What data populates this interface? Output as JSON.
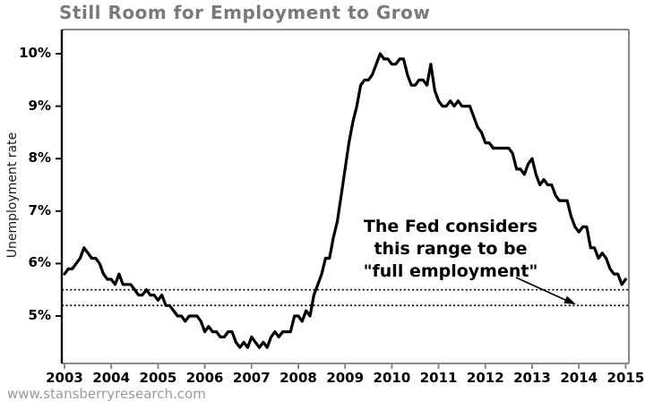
{
  "title": "Still Room for Employment to Grow",
  "watermark": "www.stansberryresearch.com",
  "annotation": {
    "lines": [
      "The Fed considers",
      "this range to be",
      "\"full employment\""
    ]
  },
  "y_axis": {
    "label": "Unemployment rate",
    "ticks": [
      {
        "value": 5,
        "label": "5%"
      },
      {
        "value": 6,
        "label": "6%"
      },
      {
        "value": 7,
        "label": "7%"
      },
      {
        "value": 8,
        "label": "8%"
      },
      {
        "value": 9,
        "label": "9%"
      },
      {
        "value": 10,
        "label": "10%"
      }
    ]
  },
  "x_axis": {
    "ticks": [
      {
        "value": 2003,
        "label": "2003"
      },
      {
        "value": 2004,
        "label": "2004"
      },
      {
        "value": 2005,
        "label": "2005"
      },
      {
        "value": 2006,
        "label": "2006"
      },
      {
        "value": 2007,
        "label": "2007"
      },
      {
        "value": 2008,
        "label": "2008"
      },
      {
        "value": 2009,
        "label": "2009"
      },
      {
        "value": 2010,
        "label": "2010"
      },
      {
        "value": 2011,
        "label": "2011"
      },
      {
        "value": 2012,
        "label": "2012"
      },
      {
        "value": 2013,
        "label": "2013"
      },
      {
        "value": 2014,
        "label": "2014"
      },
      {
        "value": 2015,
        "label": "2015"
      }
    ]
  },
  "colors": {
    "line": "#000000",
    "frame_gray": "#8a8a8a",
    "axis_black": "#111111",
    "dotted": "#000000",
    "title": "#7a7a7a",
    "watermark": "#9a9a9a"
  },
  "chart_data": {
    "type": "line",
    "title": "Still Room for Employment to Grow",
    "xlabel": "",
    "ylabel": "Unemployment rate",
    "x_start_year": 2003,
    "x_step_months": 1,
    "xlim": [
      2003,
      2015.08
    ],
    "ylim": [
      4.0,
      10.45
    ],
    "grid": false,
    "legend": "none",
    "reference_lines": [
      {
        "value": 5.5,
        "style": "dotted",
        "meaning": "full employment range upper bound"
      },
      {
        "value": 5.2,
        "style": "dotted",
        "meaning": "full employment range lower bound"
      }
    ],
    "series": [
      {
        "name": "Unemployment rate (%), monthly Jan 2003 - Jan 2015",
        "values": [
          5.8,
          5.9,
          5.9,
          6.0,
          6.1,
          6.3,
          6.2,
          6.1,
          6.1,
          6.0,
          5.8,
          5.7,
          5.7,
          5.6,
          5.8,
          5.6,
          5.6,
          5.6,
          5.5,
          5.4,
          5.4,
          5.5,
          5.4,
          5.4,
          5.3,
          5.4,
          5.2,
          5.2,
          5.1,
          5.0,
          5.0,
          4.9,
          5.0,
          5.0,
          5.0,
          4.9,
          4.7,
          4.8,
          4.7,
          4.7,
          4.6,
          4.6,
          4.7,
          4.7,
          4.5,
          4.4,
          4.5,
          4.4,
          4.6,
          4.5,
          4.4,
          4.5,
          4.4,
          4.6,
          4.7,
          4.6,
          4.7,
          4.7,
          4.7,
          5.0,
          5.0,
          4.9,
          5.1,
          5.0,
          5.4,
          5.6,
          5.8,
          6.1,
          6.1,
          6.5,
          6.8,
          7.3,
          7.8,
          8.3,
          8.7,
          9.0,
          9.4,
          9.5,
          9.5,
          9.6,
          9.8,
          10.0,
          9.9,
          9.9,
          9.8,
          9.8,
          9.9,
          9.9,
          9.6,
          9.4,
          9.4,
          9.5,
          9.5,
          9.4,
          9.8,
          9.3,
          9.1,
          9.0,
          9.0,
          9.1,
          9.0,
          9.1,
          9.0,
          9.0,
          9.0,
          8.8,
          8.6,
          8.5,
          8.3,
          8.3,
          8.2,
          8.2,
          8.2,
          8.2,
          8.2,
          8.1,
          7.8,
          7.8,
          7.7,
          7.9,
          8.0,
          7.7,
          7.5,
          7.6,
          7.5,
          7.5,
          7.3,
          7.2,
          7.2,
          7.2,
          6.9,
          6.7,
          6.6,
          6.7,
          6.7,
          6.3,
          6.3,
          6.1,
          6.2,
          6.1,
          5.9,
          5.8,
          5.8,
          5.6,
          5.7
        ]
      }
    ]
  }
}
